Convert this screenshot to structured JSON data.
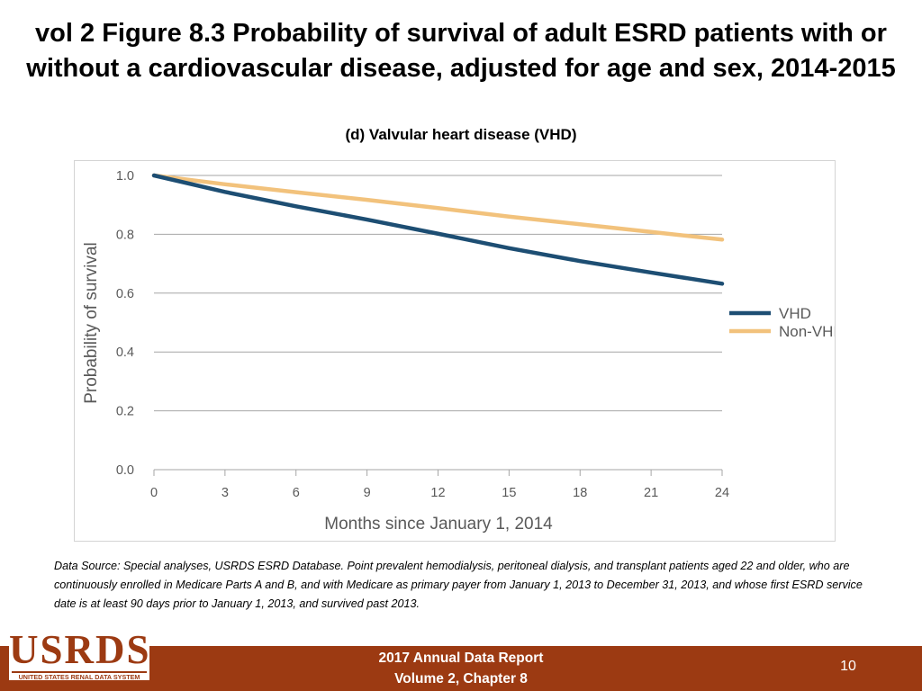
{
  "slide": {
    "title_line1": "vol 2 Figure 8.3 Probability of survival of adult ESRD patients with or",
    "title_line2": "without a cardiovascular disease, adjusted for age and sex, 2014-2015",
    "subtitle": "(d) Valvular heart disease (VHD)",
    "data_source": "Data Source: Special analyses, USRDS ESRD Database. Point prevalent hemodialysis, peritoneal dialysis, and transplant patients aged 22 and older, who are continuously enrolled in Medicare Parts A and B, and with Medicare as primary payer from January 1, 2013 to December 31, 2013, and whose first ESRD service date is at least 90 days prior to January 1, 2013, and survived past 2013."
  },
  "footer": {
    "logo_text": "USRDS",
    "logo_subtext": "UNITED STATES RENAL DATA SYSTEM",
    "report_line1": "2017 Annual Data Report",
    "report_line2": "Volume 2, Chapter 8",
    "page_number": "10"
  },
  "colors": {
    "vhd": "#1d4e73",
    "non_vhd": "#f2c27c",
    "footer_bg": "#9c3a12",
    "grid": "#a6a6a6",
    "axis_text": "#595959"
  },
  "chart_data": {
    "type": "line",
    "title": "(d) Valvular heart disease (VHD)",
    "xlabel": "Months since January 1, 2014",
    "ylabel": "Probability of survival",
    "xlim": [
      0,
      24
    ],
    "ylim": [
      0.0,
      1.0
    ],
    "x_ticks": [
      0,
      3,
      6,
      9,
      12,
      15,
      18,
      21,
      24
    ],
    "y_ticks": [
      0.0,
      0.2,
      0.4,
      0.6,
      0.8,
      1.0
    ],
    "x_tick_labels": [
      "0",
      "3",
      "6",
      "9",
      "12",
      "15",
      "18",
      "21",
      "24"
    ],
    "y_tick_labels": [
      "0.0",
      "0.2",
      "0.4",
      "0.6",
      "0.8",
      "1.0"
    ],
    "grid": "horizontal",
    "legend_position": "right",
    "x": [
      0,
      3,
      6,
      9,
      12,
      15,
      18,
      21,
      24
    ],
    "series": [
      {
        "name": "VHD",
        "color": "#1d4e73",
        "values": [
          1.0,
          0.944,
          0.895,
          0.85,
          0.802,
          0.753,
          0.709,
          0.67,
          0.632
        ]
      },
      {
        "name": "Non-VHD",
        "color": "#f2c27c",
        "values": [
          1.0,
          0.97,
          0.943,
          0.917,
          0.889,
          0.86,
          0.834,
          0.808,
          0.782
        ]
      }
    ]
  }
}
